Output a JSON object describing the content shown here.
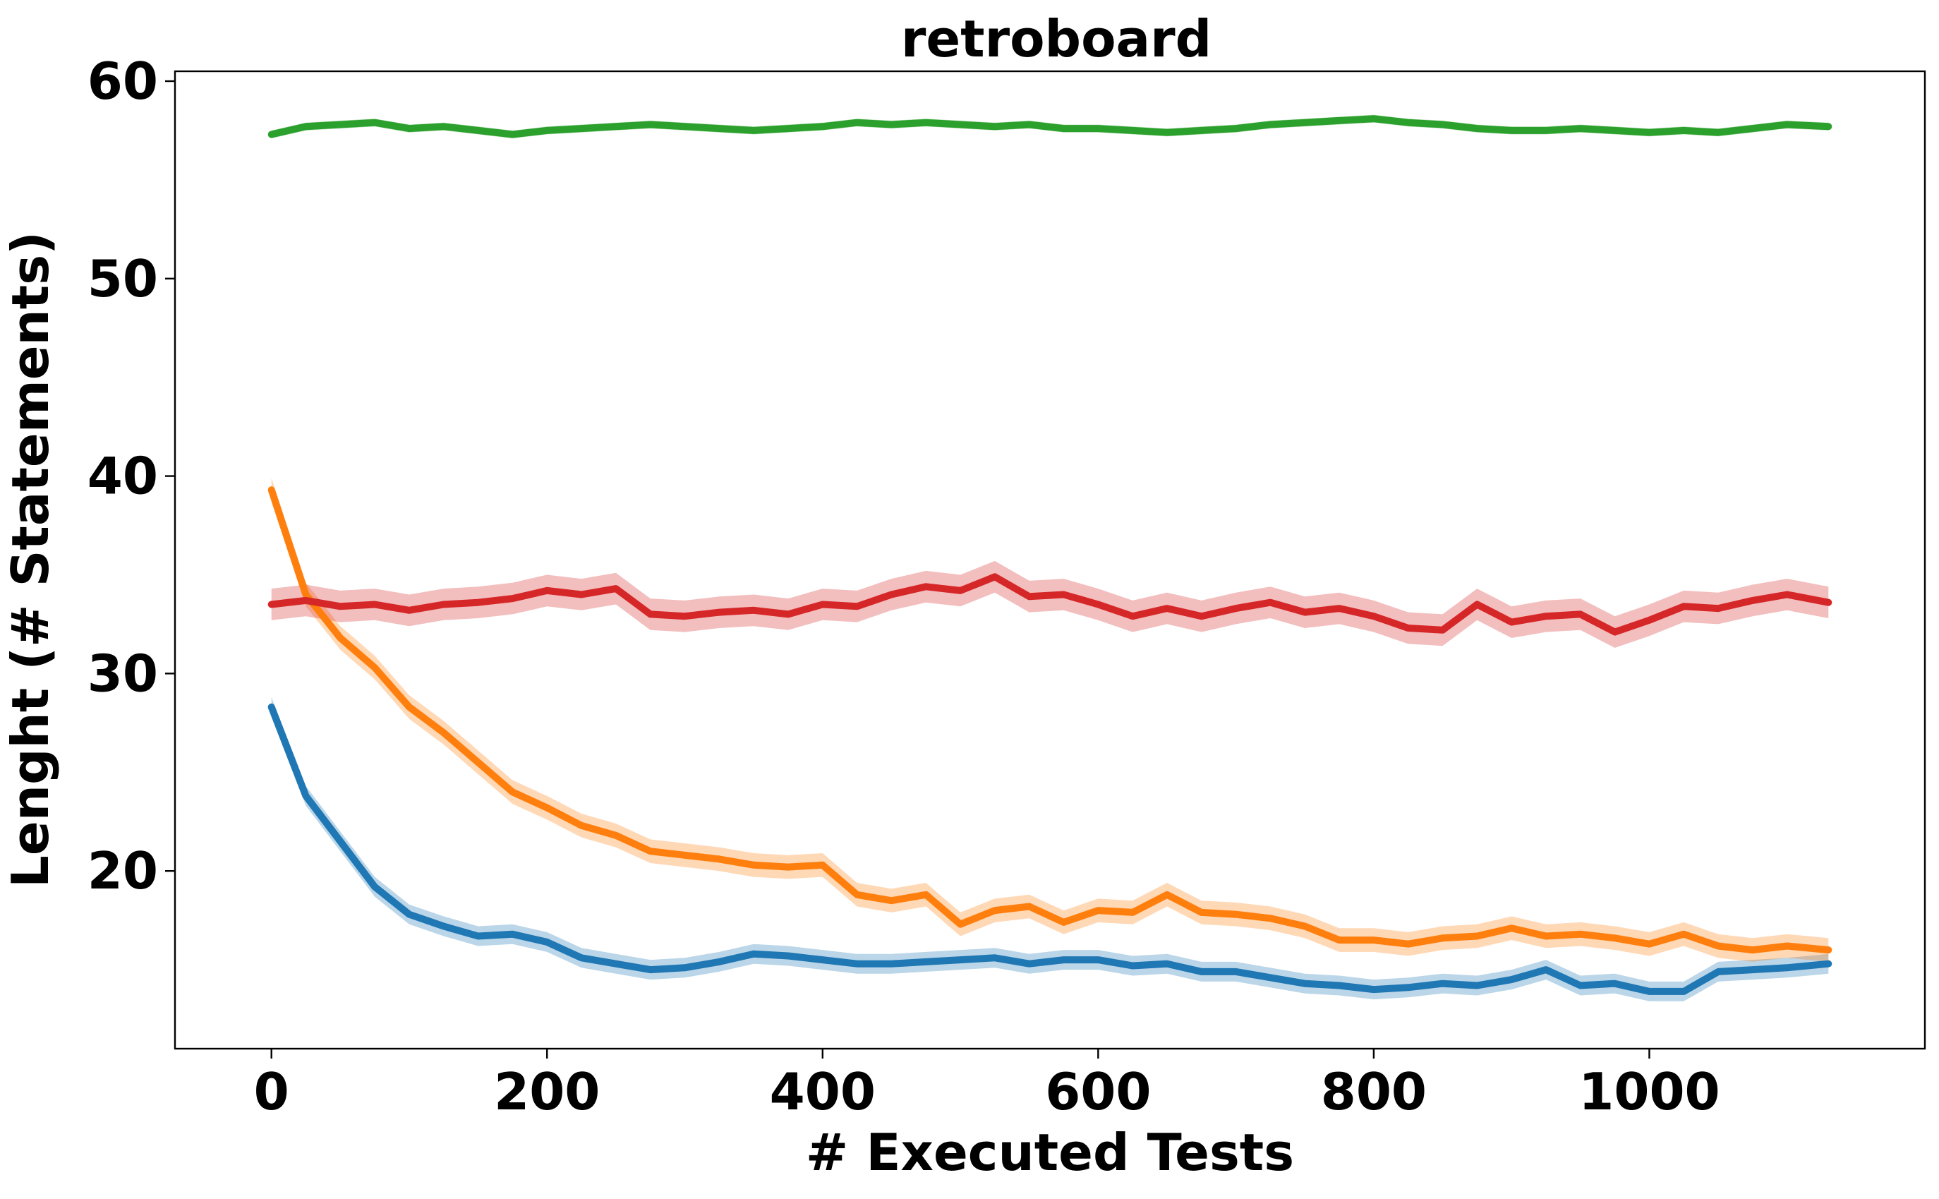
{
  "chart_data": {
    "type": "line",
    "title": "retroboard",
    "xlabel": "# Executed Tests",
    "ylabel": "Lenght (# Statements)",
    "xlim": [
      -70,
      1200
    ],
    "ylim": [
      11,
      60.5
    ],
    "xticks": [
      0,
      200,
      400,
      600,
      800,
      1000
    ],
    "xtick_labels": [
      "0",
      "200",
      "400",
      "600",
      "800",
      "1000"
    ],
    "yticks": [
      20,
      30,
      40,
      50,
      60
    ],
    "ytick_labels": [
      "20",
      "30",
      "40",
      "50",
      "60"
    ],
    "grid": false,
    "legend": "none",
    "series": [
      {
        "color": "#1f77b4",
        "band_color": "#1f77b4",
        "x": [
          0,
          25,
          50,
          75,
          100,
          125,
          150,
          175,
          200,
          225,
          250,
          275,
          300,
          325,
          350,
          375,
          400,
          425,
          450,
          475,
          500,
          525,
          550,
          575,
          600,
          625,
          650,
          675,
          700,
          725,
          750,
          775,
          800,
          825,
          850,
          875,
          900,
          925,
          950,
          975,
          1000,
          1025,
          1050,
          1075,
          1100,
          1130
        ],
        "y": [
          28.3,
          23.8,
          21.5,
          19.2,
          17.8,
          17.2,
          16.7,
          16.8,
          16.4,
          15.6,
          15.3,
          15.0,
          15.1,
          15.4,
          15.8,
          15.7,
          15.5,
          15.3,
          15.3,
          15.4,
          15.5,
          15.6,
          15.3,
          15.5,
          15.5,
          15.2,
          15.3,
          14.9,
          14.9,
          14.6,
          14.3,
          14.2,
          14.0,
          14.1,
          14.3,
          14.2,
          14.5,
          15.0,
          14.2,
          14.3,
          13.9,
          13.9,
          14.9,
          15.0,
          15.1,
          15.3
        ],
        "band": 0.5
      },
      {
        "color": "#ff7f0e",
        "band_color": "#ff7f0e",
        "x": [
          0,
          25,
          50,
          75,
          100,
          125,
          150,
          175,
          200,
          225,
          250,
          275,
          300,
          325,
          350,
          375,
          400,
          425,
          450,
          475,
          500,
          525,
          550,
          575,
          600,
          625,
          650,
          675,
          700,
          725,
          750,
          775,
          800,
          825,
          850,
          875,
          900,
          925,
          950,
          975,
          1000,
          1025,
          1050,
          1075,
          1100,
          1130
        ],
        "y": [
          39.3,
          34.0,
          31.8,
          30.3,
          28.3,
          27.0,
          25.5,
          24.0,
          23.2,
          22.3,
          21.8,
          21.0,
          20.8,
          20.6,
          20.3,
          20.2,
          20.3,
          18.8,
          18.5,
          18.8,
          17.3,
          18.0,
          18.2,
          17.4,
          18.0,
          17.9,
          18.8,
          17.9,
          17.8,
          17.6,
          17.2,
          16.5,
          16.5,
          16.3,
          16.6,
          16.7,
          17.1,
          16.7,
          16.8,
          16.6,
          16.3,
          16.8,
          16.2,
          16.0,
          16.2,
          16.0
        ],
        "band": 0.6
      },
      {
        "color": "#2ca02c",
        "band_color": "#2ca02c",
        "x": [
          0,
          25,
          50,
          75,
          100,
          125,
          150,
          175,
          200,
          225,
          250,
          275,
          300,
          325,
          350,
          375,
          400,
          425,
          450,
          475,
          500,
          525,
          550,
          575,
          600,
          625,
          650,
          675,
          700,
          725,
          750,
          775,
          800,
          825,
          850,
          875,
          900,
          925,
          950,
          975,
          1000,
          1025,
          1050,
          1075,
          1100,
          1130
        ],
        "y": [
          57.3,
          57.7,
          57.8,
          57.9,
          57.6,
          57.7,
          57.5,
          57.3,
          57.5,
          57.6,
          57.7,
          57.8,
          57.7,
          57.6,
          57.5,
          57.6,
          57.7,
          57.9,
          57.8,
          57.9,
          57.8,
          57.7,
          57.8,
          57.6,
          57.6,
          57.5,
          57.4,
          57.5,
          57.6,
          57.8,
          57.9,
          58.0,
          58.1,
          57.9,
          57.8,
          57.6,
          57.5,
          57.5,
          57.6,
          57.5,
          57.4,
          57.5,
          57.4,
          57.6,
          57.8,
          57.7
        ],
        "band": 0.2
      },
      {
        "color": "#d62728",
        "band_color": "#d62728",
        "x": [
          0,
          25,
          50,
          75,
          100,
          125,
          150,
          175,
          200,
          225,
          250,
          275,
          300,
          325,
          350,
          375,
          400,
          425,
          450,
          475,
          500,
          525,
          550,
          575,
          600,
          625,
          650,
          675,
          700,
          725,
          750,
          775,
          800,
          825,
          850,
          875,
          900,
          925,
          950,
          975,
          1000,
          1025,
          1050,
          1075,
          1100,
          1130
        ],
        "y": [
          33.5,
          33.7,
          33.4,
          33.5,
          33.2,
          33.5,
          33.6,
          33.8,
          34.2,
          34.0,
          34.3,
          33.0,
          32.9,
          33.1,
          33.2,
          33.0,
          33.5,
          33.4,
          34.0,
          34.4,
          34.2,
          34.9,
          33.9,
          34.0,
          33.5,
          32.9,
          33.3,
          32.9,
          33.3,
          33.6,
          33.1,
          33.3,
          32.9,
          32.3,
          32.2,
          33.5,
          32.6,
          32.9,
          33.0,
          32.1,
          32.7,
          33.4,
          33.3,
          33.7,
          34.0,
          33.6
        ],
        "band": 0.8
      }
    ]
  }
}
